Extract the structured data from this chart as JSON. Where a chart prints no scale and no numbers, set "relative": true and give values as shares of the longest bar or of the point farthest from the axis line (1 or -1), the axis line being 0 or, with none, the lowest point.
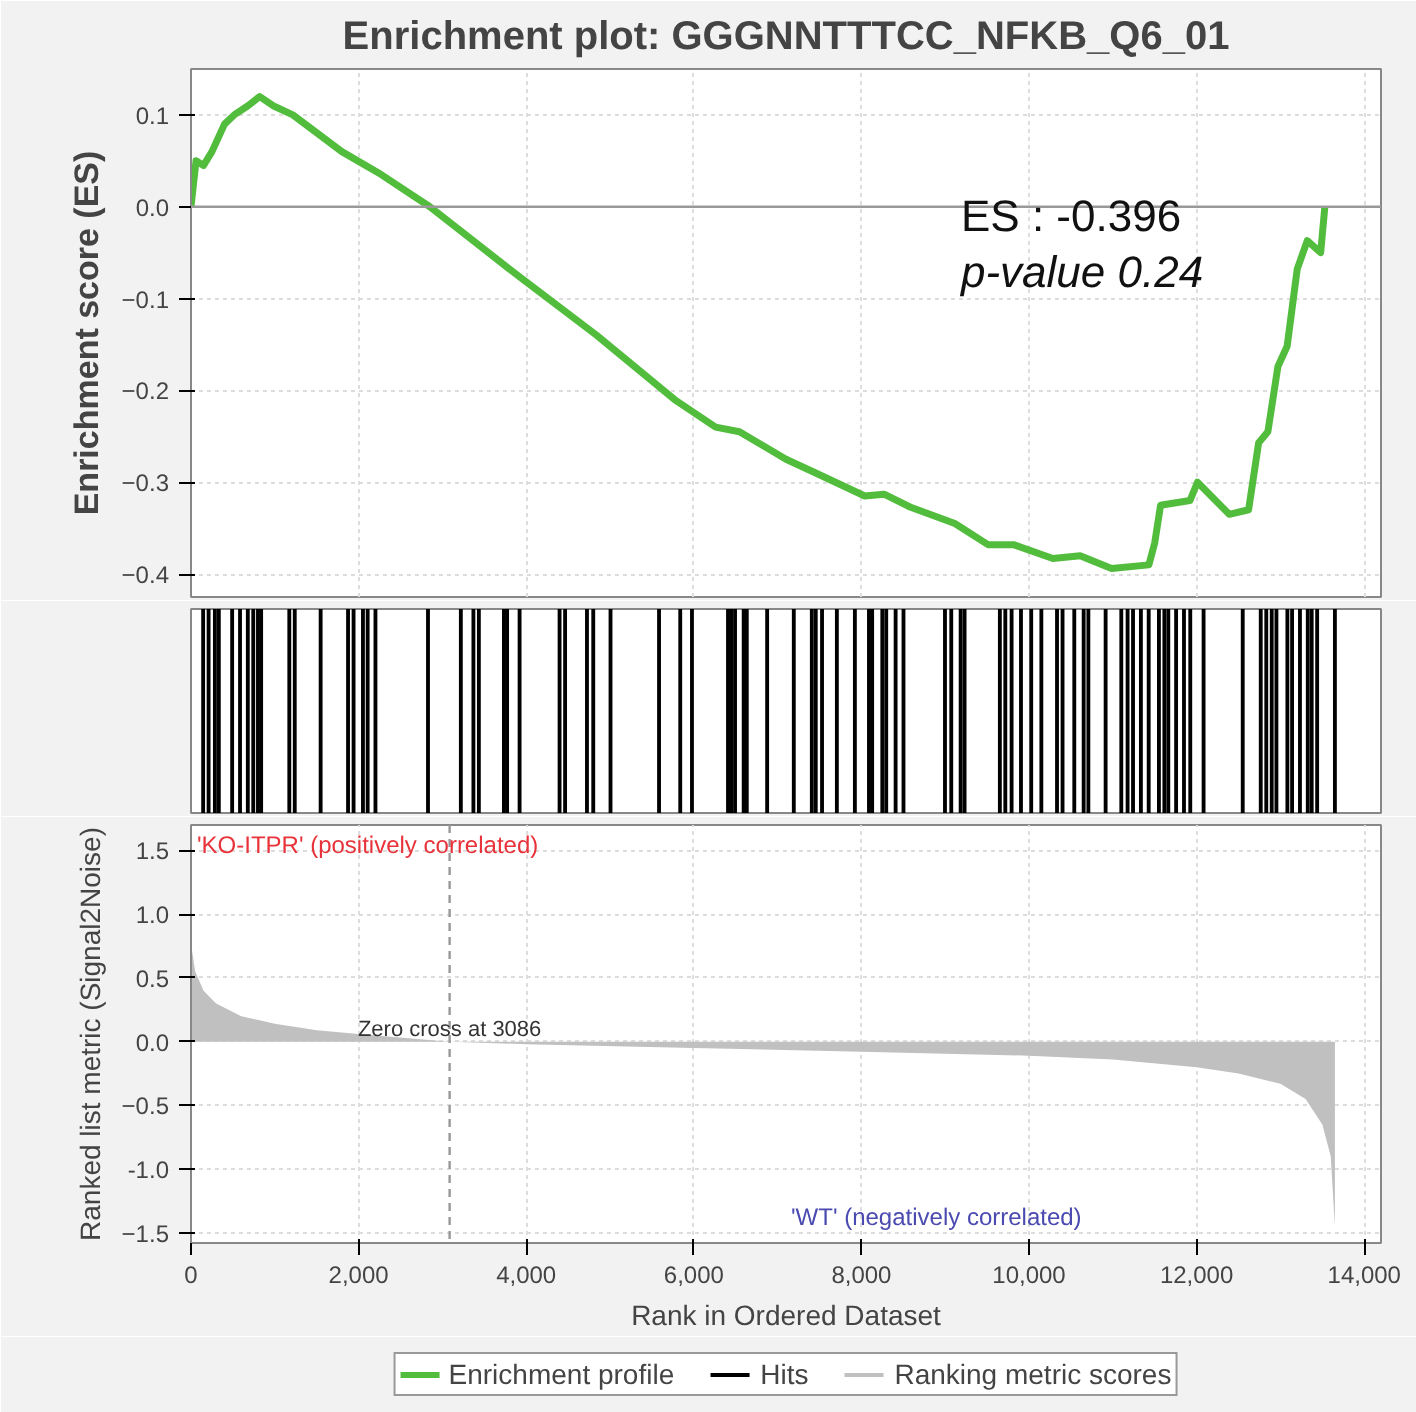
{
  "chart_data": [
    {
      "type": "line",
      "title": "Enrichment plot: GGGNNTTTCC_NFKB_Q6_01",
      "ylabel": "Enrichment score (ES)",
      "xlim": [
        0,
        14200
      ],
      "ylim": [
        -0.425,
        0.15
      ],
      "xticks": [
        0,
        2000,
        4000,
        6000,
        8000,
        10000,
        12000,
        14000
      ],
      "yticks": [
        -0.4,
        -0.3,
        -0.2,
        -0.1,
        {
          "value": 0,
          "label": "0.0"
        },
        0.1
      ],
      "tick_labels": "y",
      "grid": true,
      "x": [
        0,
        60,
        150,
        250,
        400,
        515,
        680,
        820,
        980,
        1215,
        1800,
        2270,
        2850,
        3900,
        4840,
        5770,
        6260,
        6545,
        7100,
        7455,
        8040,
        8270,
        8580,
        9115,
        9510,
        9815,
        10285,
        10610,
        10985,
        11430,
        11500,
        11570,
        11920,
        12010,
        12390,
        12620,
        12740,
        12850,
        12970,
        13080,
        13200,
        13320,
        13480,
        13530
      ],
      "series": [
        {
          "name": "Enrichment profile",
          "color": "#52bd3c",
          "values": [
            0.0,
            0.05,
            0.045,
            0.06,
            0.09,
            0.1,
            0.11,
            0.12,
            0.11,
            0.1,
            0.06,
            0.035,
            0.0,
            -0.075,
            -0.14,
            -0.21,
            -0.24,
            -0.245,
            -0.275,
            -0.29,
            -0.315,
            -0.313,
            -0.327,
            -0.345,
            -0.368,
            -0.368,
            -0.383,
            -0.38,
            -0.394,
            -0.39,
            -0.366,
            -0.325,
            -0.32,
            -0.3,
            -0.335,
            -0.33,
            -0.257,
            -0.245,
            -0.174,
            -0.152,
            -0.068,
            -0.037,
            -0.05,
            0.0
          ]
        }
      ],
      "ref_lines": [
        {
          "axis": "y",
          "value": 0,
          "color": "#999999"
        }
      ],
      "annotations": [
        "ES : -0.396",
        "p-value 0.24"
      ]
    },
    {
      "type": "bar",
      "relative": true,
      "xlim": [
        0,
        14200
      ],
      "tick_labels": false,
      "x": [
        145,
        210,
        285,
        332,
        491,
        585,
        678,
        743,
        799,
        837,
        1173,
        1238,
        1547,
        1874,
        1940,
        2052,
        2108,
        2201,
        2828,
        3220,
        3370,
        3435,
        3734,
        3772,
        3921,
        4398,
        4464,
        4725,
        4800,
        5006,
        5585,
        5838,
        5978,
        6408,
        6445,
        6492,
        6595,
        6632,
        6875,
        7193,
        7408,
        7455,
        7530,
        7707,
        7922,
        8090,
        8128,
        8249,
        8296,
        8408,
        8502,
        8997,
        9072,
        9184,
        9231,
        9652,
        9717,
        9792,
        9904,
        10026,
        10147,
        10334,
        10400,
        10540,
        10652,
        10708,
        10914,
        11101,
        11176,
        11241,
        11335,
        11428,
        11550,
        11615,
        11662,
        11755,
        11849,
        11924,
        12083,
        12550,
        12765,
        12831,
        12896,
        12952,
        13083,
        13139,
        13233,
        13326,
        13373,
        13438,
        13650
      ],
      "series": [
        {
          "name": "Hits",
          "color": "#000000",
          "values": [
            1,
            1,
            1,
            1,
            1,
            1,
            1,
            1,
            1,
            1,
            1,
            1,
            1,
            1,
            1,
            1,
            1,
            1,
            1,
            1,
            1,
            1,
            1,
            1,
            1,
            1,
            1,
            1,
            1,
            1,
            1,
            1,
            1,
            1,
            1,
            1,
            1,
            1,
            1,
            1,
            1,
            1,
            1,
            1,
            1,
            1,
            1,
            1,
            1,
            1,
            1,
            1,
            1,
            1,
            1,
            1,
            1,
            1,
            1,
            1,
            1,
            1,
            1,
            1,
            1,
            1,
            1,
            1,
            1,
            1,
            1,
            1,
            1,
            1,
            1,
            1,
            1,
            1,
            1,
            1,
            1,
            1,
            1,
            1,
            1,
            1,
            1,
            1,
            1,
            1,
            1
          ]
        }
      ]
    },
    {
      "type": "area",
      "xlabel": "Rank in Ordered Dataset",
      "ylabel": "Ranked list metric (Signal2Noise)",
      "xlim": [
        0,
        14200
      ],
      "ylim": [
        -1.58,
        1.7
      ],
      "xticks": [
        0,
        {
          "value": 2000,
          "label": "2,000"
        },
        {
          "value": 4000,
          "label": "4,000"
        },
        {
          "value": 6000,
          "label": "6,000"
        },
        {
          "value": 8000,
          "label": "8,000"
        },
        {
          "value": 10000,
          "label": "10,000"
        },
        {
          "value": 12000,
          "label": "12,000"
        },
        {
          "value": 14000,
          "label": "14,000"
        }
      ],
      "yticks": [
        -1.5,
        {
          "value": -1,
          "label": "-1.0"
        },
        -0.5,
        {
          "value": 0,
          "label": "0.0"
        },
        0.5,
        {
          "value": 1,
          "label": "1.0"
        },
        1.5
      ],
      "grid": true,
      "legend": "bottom",
      "x": [
        0,
        50,
        150,
        300,
        600,
        1000,
        1500,
        2000,
        3086,
        4000,
        6000,
        8000,
        10000,
        11000,
        12000,
        12500,
        13000,
        13300,
        13500,
        13600,
        13650
      ],
      "series": [
        {
          "name": "Ranking metric scores",
          "color": "#c0c0c0",
          "values": [
            0.77,
            0.55,
            0.4,
            0.3,
            0.2,
            0.14,
            0.09,
            0.06,
            0.0,
            -0.02,
            -0.05,
            -0.08,
            -0.11,
            -0.14,
            -0.2,
            -0.25,
            -0.33,
            -0.45,
            -0.65,
            -0.9,
            -1.45
          ]
        }
      ],
      "ref_lines": [
        {
          "axis": "x",
          "value": 3086,
          "label": "Zero cross at 3086",
          "line_style": "dashed",
          "color": "#999999"
        }
      ],
      "annotations": [
        "'KO-ITPR' (positively correlated)",
        "'WT' (negatively correlated)"
      ]
    }
  ]
}
